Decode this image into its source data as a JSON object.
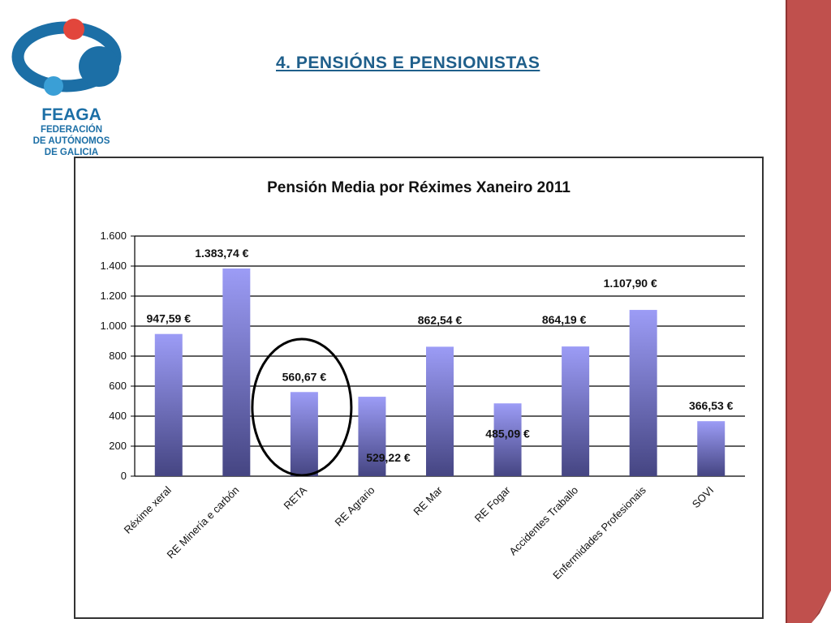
{
  "logo": {
    "name": "FEAGA",
    "line1": "FEDERACIÓN",
    "line2": "DE AUTÓNOMOS",
    "line3": "DE GALICIA",
    "colors": {
      "ring": "#1c6fa6",
      "dot_red": "#e2463c",
      "dot_blue": "#1c6fa6",
      "dot_light": "#3a9fd6"
    }
  },
  "slide": {
    "title": "4. PENSIÓNS E PENSIONISTAS",
    "accent_color": "#c0504d"
  },
  "chart_data": {
    "type": "bar",
    "title": "Pensión Media por Réximes Xaneiro 2011",
    "categories": [
      "Réxime xeral",
      "RE Minería e carbón",
      "RETA",
      "RE Agrario",
      "RE Mar",
      "RE Fogar",
      "Accidentes Traballo",
      "Enfermidades Profesionais",
      "SOVI"
    ],
    "values": [
      947.59,
      1383.74,
      560.67,
      529.22,
      862.54,
      485.09,
      864.19,
      1107.9,
      366.53
    ],
    "data_labels": [
      "947,59 €",
      "1.383,74 €",
      "560,67 €",
      "529,22 €",
      "862,54 €",
      "485,09 €",
      "864,19 €",
      "1.107,90 €",
      "366,53 €"
    ],
    "ylim": [
      0,
      1600
    ],
    "yticks": [
      0,
      200,
      400,
      600,
      800,
      1000,
      1200,
      1400,
      1600
    ],
    "ytick_labels": [
      "0",
      "200",
      "400",
      "600",
      "800",
      "1.000",
      "1.200",
      "1.400",
      "1.600"
    ],
    "grid": true,
    "legend": "none",
    "highlighted_category": "RETA",
    "bar_color_top": "#9c9cf6",
    "bar_color_bottom": "#454582"
  }
}
